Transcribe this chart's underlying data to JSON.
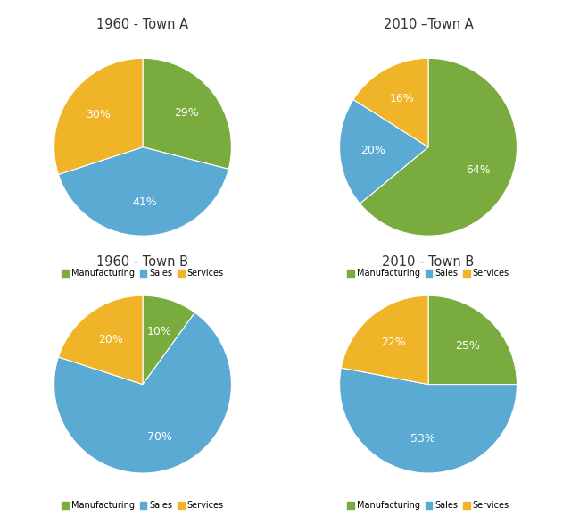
{
  "charts": [
    {
      "title": "1960 - Town A",
      "values": [
        29,
        41,
        30
      ],
      "colors": [
        "#7aab3e",
        "#5baad4",
        "#f0b429"
      ],
      "startangle": 90,
      "pct_labels": [
        "29%",
        "41%",
        "30%"
      ]
    },
    {
      "title": "2010 –Town A",
      "values": [
        64,
        20,
        16
      ],
      "colors": [
        "#7aab3e",
        "#5baad4",
        "#f0b429"
      ],
      "startangle": 90,
      "pct_labels": [
        "64%",
        "20%",
        "16%"
      ]
    },
    {
      "title": "1960 - Town B",
      "values": [
        10,
        70,
        20
      ],
      "colors": [
        "#7aab3e",
        "#5baad4",
        "#f0b429"
      ],
      "startangle": 90,
      "pct_labels": [
        "10%",
        "70%",
        "20%"
      ]
    },
    {
      "title": "2010 - Town B",
      "values": [
        25,
        53,
        22
      ],
      "colors": [
        "#7aab3e",
        "#5baad4",
        "#f0b429"
      ],
      "startangle": 90,
      "pct_labels": [
        "25%",
        "53%",
        "22%"
      ]
    }
  ],
  "legend_labels": [
    "Manufacturing",
    "Sales",
    "Services"
  ],
  "legend_colors": [
    "#7aab3e",
    "#5baad4",
    "#f0b429"
  ],
  "bg_color": "#ffffff",
  "text_color": "#ffffff",
  "label_fontsize": 9,
  "title_fontsize": 10.5
}
